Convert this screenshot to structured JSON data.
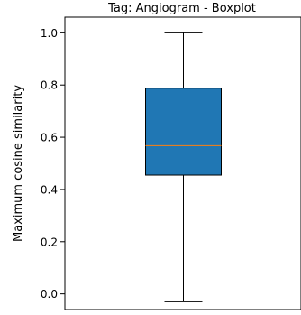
{
  "chart_data": {
    "type": "boxplot",
    "title": "Tag: Angiogram - Boxplot",
    "xlabel": "",
    "ylabel": "Maximum cosine similarity",
    "ylim": [
      -0.06,
      1.06
    ],
    "yticks": [
      0.0,
      0.2,
      0.4,
      0.6,
      0.8,
      1.0
    ],
    "ytick_labels": [
      "0.0",
      "0.2",
      "0.4",
      "0.6",
      "0.8",
      "1.0"
    ],
    "grid": false,
    "box": {
      "whisker_low": -0.03,
      "q1": 0.455,
      "median": 0.568,
      "q3": 0.788,
      "whisker_high": 1.0
    },
    "colors": {
      "box_fill": "#2077b4",
      "median_line": "#ff7f0e",
      "edge": "#000000"
    }
  }
}
